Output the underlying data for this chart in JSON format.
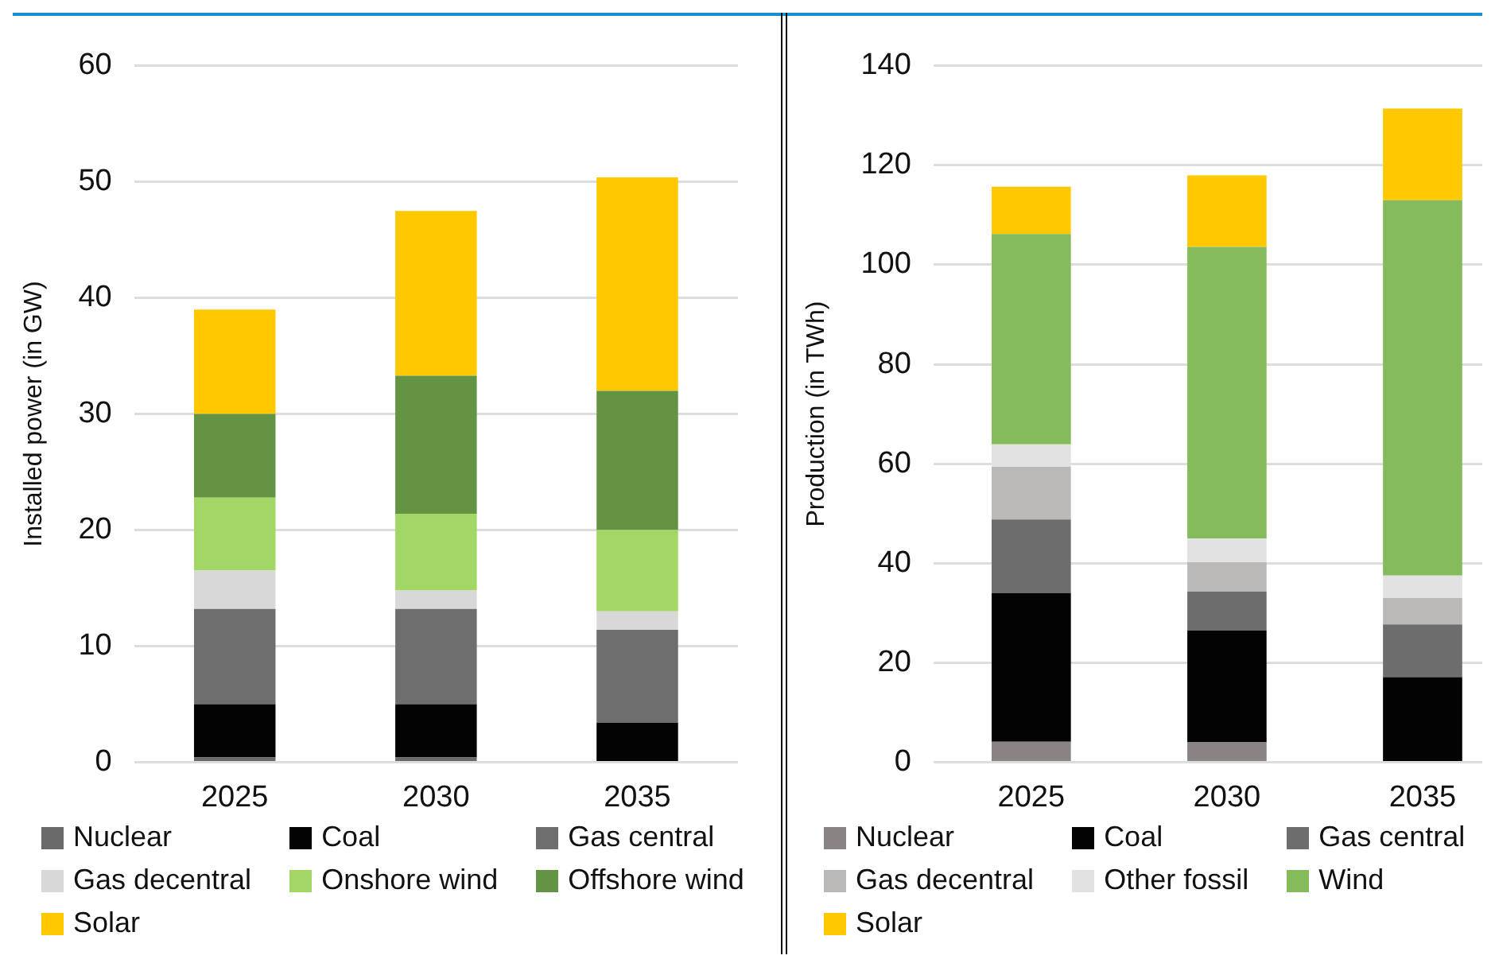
{
  "chart_data": [
    {
      "type": "bar",
      "stacked": true,
      "ylabel": "Installed power (in GW)",
      "categories": [
        "2025",
        "2030",
        "2035"
      ],
      "ylim": [
        0,
        60
      ],
      "yticks": [
        0,
        10,
        20,
        30,
        40,
        50,
        60
      ],
      "grid": "y",
      "legend": "bottom",
      "series": [
        {
          "name": "Nuclear",
          "color": "#6a6a6a",
          "values": [
            0.4,
            0.4,
            0
          ]
        },
        {
          "name": "Coal",
          "color": "#030303",
          "values": [
            4.6,
            4.6,
            3.4
          ]
        },
        {
          "name": "Gas central",
          "color": "#6e6e6e",
          "values": [
            8.2,
            8.2,
            8.0
          ]
        },
        {
          "name": "Gas decentral",
          "color": "#d9d8d8",
          "values": [
            3.3,
            1.6,
            1.6
          ]
        },
        {
          "name": "Onshore wind",
          "color": "#a2d665",
          "values": [
            6.3,
            6.6,
            7.0
          ]
        },
        {
          "name": "Offshore wind",
          "color": "#639443",
          "values": [
            7.2,
            11.9,
            12.0
          ]
        },
        {
          "name": "Solar",
          "color": "#ffc800",
          "values": [
            9.0,
            14.2,
            18.4
          ]
        }
      ]
    },
    {
      "type": "bar",
      "stacked": true,
      "ylabel": "Production (in TWh)",
      "categories": [
        "2025",
        "2030",
        "2035"
      ],
      "ylim": [
        0,
        140
      ],
      "yticks": [
        0,
        20,
        40,
        60,
        80,
        100,
        120,
        140
      ],
      "grid": "y",
      "legend": "bottom",
      "series": [
        {
          "name": "Nuclear",
          "color": "#888483",
          "values": [
            4.1,
            4.0,
            0
          ]
        },
        {
          "name": "Coal",
          "color": "#030303",
          "values": [
            29.9,
            22.5,
            17.1
          ]
        },
        {
          "name": "Gas central",
          "color": "#6d6d6d",
          "values": [
            14.8,
            7.8,
            10.6
          ]
        },
        {
          "name": "Gas decentral",
          "color": "#bbb8b8",
          "values": [
            10.6,
            5.9,
            5.3
          ]
        },
        {
          "name": "Other fossil",
          "color": "#e2e2e2",
          "values": [
            4.5,
            4.8,
            4.5
          ]
        },
        {
          "name": "Wind",
          "color": "#85bb5a",
          "values": [
            42.3,
            58.6,
            75.5
          ]
        },
        {
          "name": "Solar",
          "color": "#ffc800",
          "values": [
            9.5,
            14.4,
            18.4
          ]
        }
      ]
    }
  ]
}
